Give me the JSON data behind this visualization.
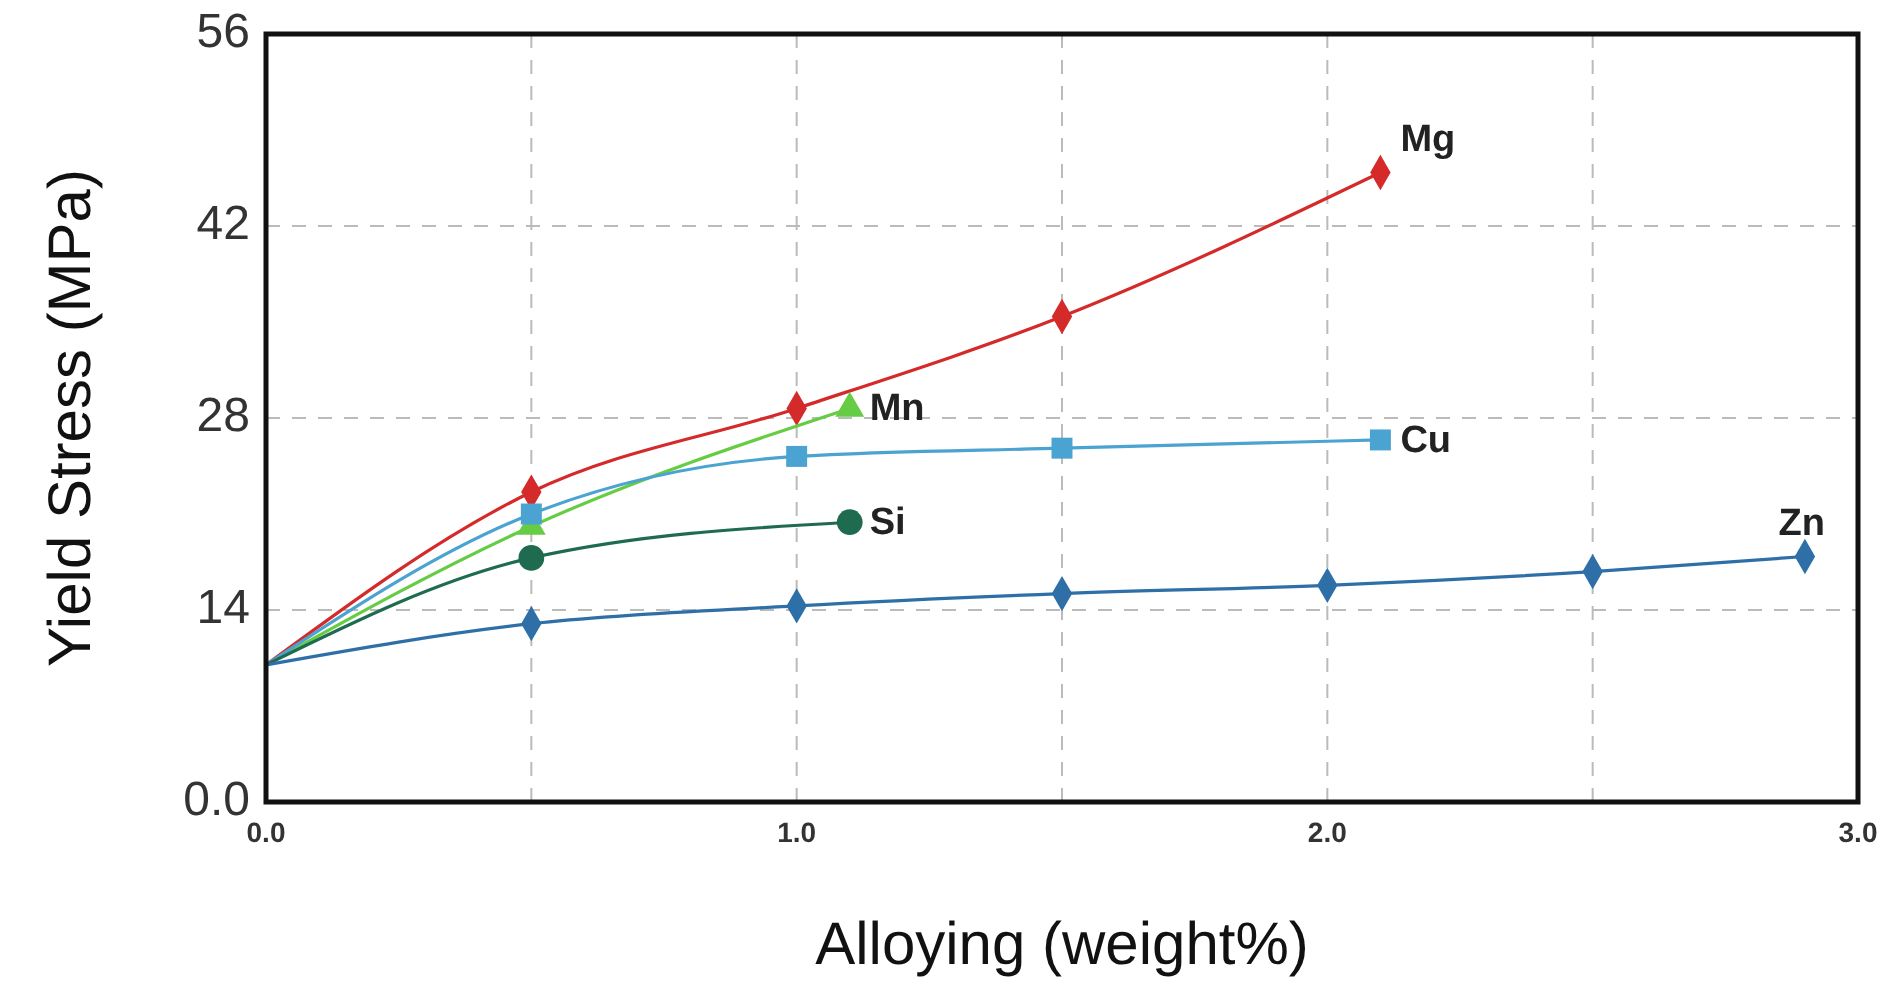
{
  "chart_data": {
    "type": "line",
    "xlabel": "Alloying (weight%)",
    "ylabel": "Yield Stress (MPa)",
    "xlim": [
      0,
      3
    ],
    "ylim": [
      0,
      56
    ],
    "xticks": [
      {
        "value": 0,
        "label": "0.0"
      },
      {
        "value": 0.5,
        "label": null
      },
      {
        "value": 1,
        "label": "1.0"
      },
      {
        "value": 1.5,
        "label": null
      },
      {
        "value": 2,
        "label": "2.0"
      },
      {
        "value": 2.5,
        "label": null
      },
      {
        "value": 3,
        "label": "3.0"
      }
    ],
    "yticks": [
      {
        "value": 0,
        "label": "0.0"
      },
      14,
      28,
      42,
      56
    ],
    "grid": true,
    "line_style": "solid",
    "series": [
      {
        "name": "Mg",
        "color": "#d42a2a",
        "marker": "diamond",
        "x": [
          0,
          0.5,
          1,
          1.5,
          2.1
        ],
        "values": [
          10,
          22.6,
          28.7,
          35.4,
          45.9
        ]
      },
      {
        "name": "Mn",
        "color": "#66cc44",
        "marker": "triangle",
        "x": [
          0,
          0.5,
          1.1
        ],
        "values": [
          10,
          20.1,
          28.7
        ]
      },
      {
        "name": "Cu",
        "color": "#4aa3d0",
        "marker": "square",
        "x": [
          0,
          0.5,
          1,
          1.5,
          2.1
        ],
        "values": [
          10,
          21,
          25.2,
          25.8,
          26.4
        ]
      },
      {
        "name": "Si",
        "color": "#1f6b50",
        "marker": "circle",
        "x": [
          0,
          0.5,
          1.1
        ],
        "values": [
          10,
          17.8,
          20.4
        ]
      },
      {
        "name": "Zn",
        "color": "#2e6fa8",
        "marker": "diamond",
        "x": [
          0,
          0.5,
          1,
          1.5,
          2,
          2.5,
          2.9
        ],
        "values": [
          10,
          13,
          14.3,
          15.2,
          15.8,
          16.8,
          17.9
        ]
      }
    ]
  }
}
